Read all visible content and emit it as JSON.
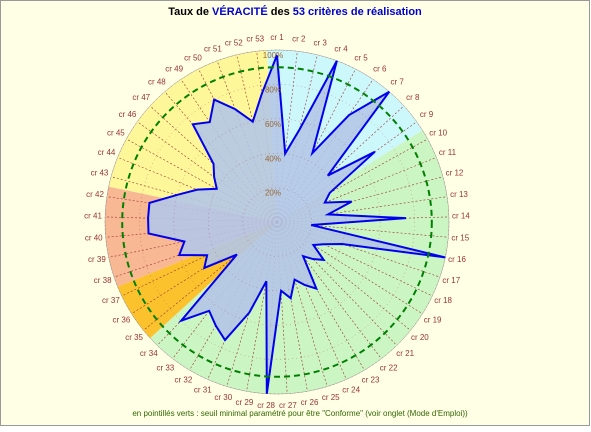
{
  "chart_data": {
    "type": "radar",
    "title": [
      {
        "text": "Taux de ",
        "color": "#000000"
      },
      {
        "text": "VÉRACITÉ",
        "color": "#0000cc"
      },
      {
        "text": " des ",
        "color": "#000000"
      },
      {
        "text": "53 critères de réalisation",
        "color": "#0000cc"
      }
    ],
    "footnote": "en pointillés verts : seuil minimal paramétré pour être \"Conforme\" (voir onglet (Mode d'Emploi))",
    "categories": [
      "cr 1",
      "cr 2",
      "cr 3",
      "cr 4",
      "cr 5",
      "cr 6",
      "cr 7",
      "cr 8",
      "cr 9",
      "cr 10",
      "cr 11",
      "cr 12",
      "cr 13",
      "cr 14",
      "cr 15",
      "cr 16",
      "cr 17",
      "cr 18",
      "cr 19",
      "cr 20",
      "cr 21",
      "cr 22",
      "cr 23",
      "cr 24",
      "cr 25",
      "cr 26",
      "cr 27",
      "cr 28",
      "cr 29",
      "cr 30",
      "cr 31",
      "cr 32",
      "cr 33",
      "cr 34",
      "cr 35",
      "cr 36",
      "cr 37",
      "cr 38",
      "cr 39",
      "cr 40",
      "cr 41",
      "cr 42",
      "cr 43",
      "cr 44",
      "cr 45",
      "cr 46",
      "cr 47",
      "cr 48",
      "cr 49",
      "cr 50",
      "cr 51",
      "cr 52",
      "cr 53"
    ],
    "values": [
      97,
      40,
      55,
      100,
      45,
      75,
      100,
      40,
      70,
      35,
      30,
      45,
      30,
      75,
      20,
      100,
      40,
      30,
      25,
      35,
      30,
      25,
      45,
      40,
      35,
      45,
      40,
      100,
      35,
      55,
      75,
      70,
      65,
      80,
      30,
      50,
      45,
      60,
      55,
      75,
      75,
      75,
      60,
      50,
      40,
      45,
      50,
      75,
      70,
      80,
      70,
      60,
      75
    ],
    "color": "#0000ee",
    "fill": "#b4c6e7",
    "rlim": [
      0,
      100
    ],
    "rticks": [
      {
        "value": 20,
        "label": "20%"
      },
      {
        "value": 40,
        "label": "40%"
      },
      {
        "value": 60,
        "label": "60%"
      },
      {
        "value": 80,
        "label": "80%"
      },
      {
        "value": 100,
        "label": "100%"
      }
    ],
    "threshold": 90,
    "threshold_color": "#008000",
    "zones": [
      {
        "from": 0,
        "to": 8,
        "color": "#ccf7fb"
      },
      {
        "from": 9,
        "to": 33,
        "color": "#ccf5c4"
      },
      {
        "from": 34,
        "to": 36,
        "color": "#fbc22e"
      },
      {
        "from": 37,
        "to": 41,
        "color": "#f8b894"
      },
      {
        "from": 42,
        "to": 52,
        "color": "#fdf79a"
      }
    ]
  }
}
